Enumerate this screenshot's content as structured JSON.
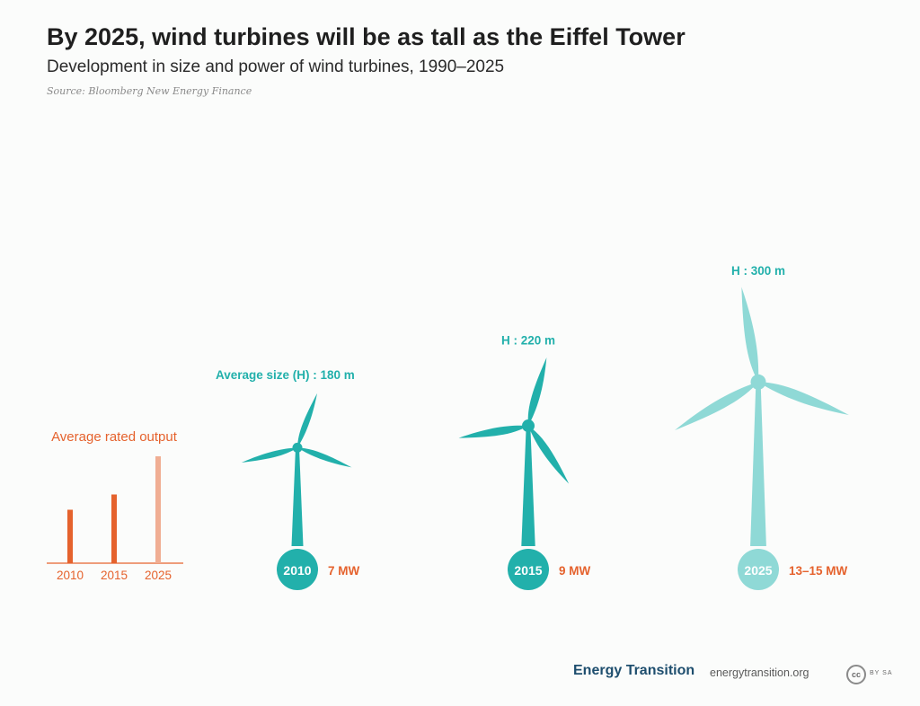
{
  "header": {
    "title": "By 2025, wind turbines will be as tall as the Eiffel Tower",
    "subtitle": "Development in size and power of wind turbines, 1990–2025",
    "source": "Source: Bloomberg New Energy Finance"
  },
  "colors": {
    "teal": "#22b0ab",
    "teal_light": "#8fd9d6",
    "orange": "#e5622d",
    "orange_light": "#f0ae93"
  },
  "chart_data": [
    {
      "type": "bar",
      "title": "Average rated output",
      "categories": [
        "2010",
        "2015",
        "2025"
      ],
      "values": [
        7,
        9,
        14
      ],
      "ylim": [
        0,
        16
      ],
      "grid": false
    },
    {
      "type": "pictogram",
      "turbines": [
        {
          "year": "2010",
          "height_m": 180,
          "height_label": "Average size (H) : 180 m",
          "output_label": "7 MW"
        },
        {
          "year": "2015",
          "height_m": 220,
          "height_label": "H : 220 m",
          "output_label": "9 MW"
        },
        {
          "year": "2025",
          "height_m": 300,
          "height_label": "H : 300 m",
          "output_label": "13–15 MW"
        }
      ]
    }
  ],
  "footer": {
    "brand": "Energy Transition",
    "url": "energytransition.org",
    "cc_icon": "cc",
    "license": "BY SA"
  }
}
